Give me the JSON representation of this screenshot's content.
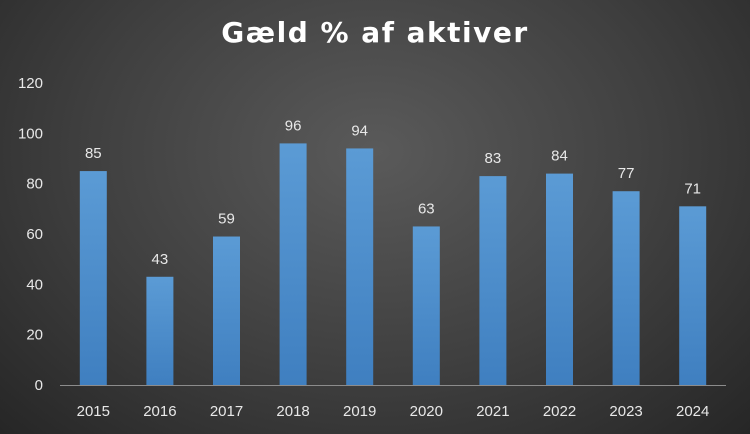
{
  "chart_data": {
    "type": "bar",
    "title": "Gæld % af aktiver",
    "xlabel": "",
    "ylabel": "",
    "categories": [
      "2015",
      "2016",
      "2017",
      "2018",
      "2019",
      "2020",
      "2021",
      "2022",
      "2023",
      "2024"
    ],
    "values": [
      85,
      43,
      59,
      96,
      94,
      63,
      83,
      84,
      77,
      71
    ],
    "data_labels": [
      "85",
      "43",
      "59",
      "96",
      "94",
      "63",
      "83",
      "84",
      "77",
      "71"
    ],
    "ylim": [
      0,
      120
    ],
    "yticks": [
      "0",
      "20",
      "40",
      "60",
      "80",
      "100",
      "120"
    ],
    "grid": false,
    "legend": "none",
    "colors": {
      "bar_top": "#5b9bd5",
      "bar_bottom": "#3f7fc0",
      "text": "#e8e8e8",
      "axis": "#8c8c8c"
    }
  }
}
